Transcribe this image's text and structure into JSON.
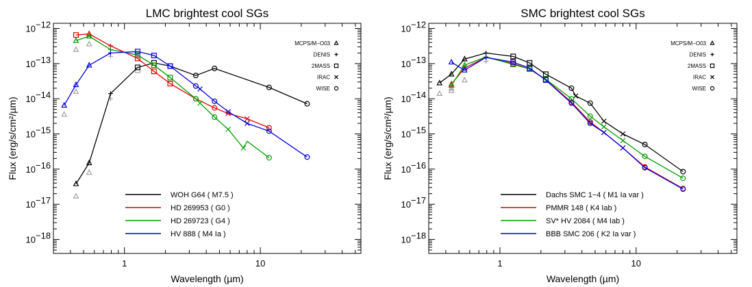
{
  "chart_data": [
    {
      "type": "line",
      "title": "LMC brightest cool SGs",
      "xlabel": "Wavelength (µm)",
      "ylabel": "Flux (erg/s/cm²/µm)",
      "xscale": "log",
      "yscale": "log",
      "xlim": [
        0.3,
        55
      ],
      "ylim": [
        4e-19,
        1.4e-12
      ],
      "x_ticks": [
        {
          "v": 1,
          "label": "1"
        },
        {
          "v": 10,
          "label": "10"
        }
      ],
      "y_ticks": [
        {
          "v": 1e-18,
          "base": "10",
          "exp": "−18"
        },
        {
          "v": 1e-17,
          "base": "10",
          "exp": "−17"
        },
        {
          "v": 1e-16,
          "base": "10",
          "exp": "−16"
        },
        {
          "v": 1e-15,
          "base": "10",
          "exp": "−15"
        },
        {
          "v": 1e-14,
          "base": "10",
          "exp": "−14"
        },
        {
          "v": 1e-13,
          "base": "10",
          "exp": "−13"
        },
        {
          "v": 1e-12,
          "base": "10",
          "exp": "−12"
        }
      ],
      "instrument_legend": {
        "placement": "top-right",
        "items": [
          {
            "label": "MCPS/M−O03",
            "marker": "triangle"
          },
          {
            "label": "DENIS",
            "marker": "plus"
          },
          {
            "label": "2MASS",
            "marker": "square"
          },
          {
            "label": "IRAC",
            "marker": "cross"
          },
          {
            "label": "WISE",
            "marker": "circle"
          }
        ]
      },
      "legend_placement": "bottom-center",
      "series": [
        {
          "name": "WOH G64 ( M7.5 )",
          "color": "#000000",
          "x": [
            0.44,
            0.55,
            0.79,
            1.25,
            1.65,
            2.17,
            3.35,
            4.6,
            11.6,
            22.1
          ],
          "y": [
            3.8e-17,
            1.5e-16,
            1.4e-14,
            7.8e-14,
            1.05e-13,
            8.5e-14,
            4.6e-14,
            7.3e-14,
            2.1e-14,
            7.2e-15
          ],
          "markers": [
            "triangle",
            "triangle",
            "plus",
            "square",
            "square",
            "square",
            "circle",
            "circle",
            "circle",
            "circle"
          ]
        },
        {
          "name": "HD 269953 ( G0 )",
          "color": "#e00000",
          "x": [
            0.44,
            0.55,
            0.79,
            1.25,
            1.65,
            2.17,
            3.35,
            4.6,
            5.8,
            8.0,
            11.6
          ],
          "y": [
            6.5e-13,
            7e-13,
            3.2e-13,
            1.4e-13,
            6e-14,
            2.7e-14,
            1e-14,
            5.5e-15,
            3.8e-15,
            2.7e-15,
            1.5e-15
          ],
          "markers": [
            "square",
            "triangle",
            "plus",
            "square",
            "square",
            "square",
            "circle",
            "circle",
            "cross",
            "cross",
            "circle"
          ]
        },
        {
          "name": "HD 269723 ( G4 )",
          "color": "#009a00",
          "x": [
            0.44,
            0.55,
            0.79,
            1.25,
            1.65,
            2.17,
            3.35,
            3.6,
            4.6,
            5.8,
            7.5,
            8.0,
            11.6
          ],
          "y": [
            4.5e-13,
            6e-13,
            2.5e-13,
            1.75e-13,
            9e-14,
            4e-14,
            1e-14,
            7.5e-15,
            3e-15,
            1.35e-15,
            4e-16,
            6.2e-16,
            2.1e-16
          ],
          "markers": [
            "triangle",
            "triangle",
            "plus",
            "square",
            "square",
            "square",
            "circle",
            "cross",
            "circle",
            "cross",
            "cross",
            "none",
            "circle"
          ]
        },
        {
          "name": "HV 888 ( M4 Ia )",
          "color": "#0000dd",
          "x": [
            0.36,
            0.44,
            0.55,
            0.79,
            1.25,
            1.65,
            2.17,
            3.35,
            3.6,
            4.6,
            5.8,
            8.0,
            11.6,
            22.1
          ],
          "y": [
            6.5e-15,
            2.5e-14,
            9e-14,
            2e-13,
            2.2e-13,
            1.7e-13,
            8.5e-14,
            2.3e-14,
            1.9e-14,
            8.5e-15,
            4.3e-15,
            2e-15,
            1.2e-15,
            2.2e-16
          ],
          "markers": [
            "triangle",
            "triangle",
            "triangle",
            "plus",
            "square",
            "square",
            "square",
            "circle",
            "cross",
            "circle",
            "cross",
            "cross",
            "circle",
            "circle"
          ]
        }
      ],
      "grey_points": {
        "color": "#a0a0a0",
        "x": [
          0.36,
          0.44,
          0.44,
          0.44,
          0.55,
          0.55,
          0.79,
          0.79,
          1.25
        ],
        "y": [
          3.6e-15,
          1.7e-17,
          1.6e-14,
          2.5e-13,
          8e-17,
          3.6e-13,
          1.6e-13,
          1e-14,
          6.5e-14
        ],
        "markers": [
          "triangle",
          "triangle",
          "triangle",
          "triangle",
          "triangle",
          "triangle",
          "plus",
          "plus",
          "square"
        ]
      }
    },
    {
      "type": "line",
      "title": "SMC brightest cool SGs",
      "xlabel": "Wavelength (µm)",
      "ylabel": "Flux (erg/s/cm²/µm)",
      "xscale": "log",
      "yscale": "log",
      "xlim": [
        0.3,
        55
      ],
      "ylim": [
        4e-19,
        1.4e-12
      ],
      "x_ticks": [
        {
          "v": 1,
          "label": "1"
        },
        {
          "v": 10,
          "label": "10"
        }
      ],
      "y_ticks": [
        {
          "v": 1e-18,
          "base": "10",
          "exp": "−18"
        },
        {
          "v": 1e-17,
          "base": "10",
          "exp": "−17"
        },
        {
          "v": 1e-16,
          "base": "10",
          "exp": "−16"
        },
        {
          "v": 1e-15,
          "base": "10",
          "exp": "−15"
        },
        {
          "v": 1e-14,
          "base": "10",
          "exp": "−14"
        },
        {
          "v": 1e-13,
          "base": "10",
          "exp": "−13"
        },
        {
          "v": 1e-12,
          "base": "10",
          "exp": "−12"
        }
      ],
      "instrument_legend": {
        "placement": "top-right",
        "items": [
          {
            "label": "MCPS/M−O03",
            "marker": "triangle"
          },
          {
            "label": "DENIS",
            "marker": "plus"
          },
          {
            "label": "2MASS",
            "marker": "square"
          },
          {
            "label": "IRAC",
            "marker": "cross"
          },
          {
            "label": "WISE",
            "marker": "circle"
          }
        ]
      },
      "legend_placement": "bottom-center",
      "series": [
        {
          "name": "Dachs SMC 1−4 ( M1 Ia var )",
          "color": "#000000",
          "x": [
            0.36,
            0.44,
            0.55,
            0.79,
            1.25,
            1.65,
            2.17,
            3.35,
            3.6,
            4.6,
            5.8,
            8.0,
            11.6,
            22.1
          ],
          "y": [
            2.8e-14,
            5e-14,
            1.35e-13,
            2e-13,
            1.6e-13,
            1.05e-13,
            5e-14,
            2e-14,
            1.2e-14,
            7.5e-15,
            2.3e-15,
            1e-15,
            5e-16,
            8.5e-17
          ],
          "markers": [
            "triangle",
            "triangle",
            "triangle",
            "plus",
            "square",
            "square",
            "square",
            "circle",
            "cross",
            "circle",
            "cross",
            "cross",
            "circle",
            "circle"
          ]
        },
        {
          "name": "PMMR 148 ( K4 Iab )",
          "color": "#e00000",
          "x": [
            0.44,
            0.55,
            0.79,
            1.25,
            1.65,
            2.17,
            3.35,
            4.6,
            5.8,
            8.0,
            11.6,
            22.1
          ],
          "y": [
            2.6e-14,
            7.5e-14,
            1.5e-13,
            1e-13,
            7e-14,
            3.5e-14,
            8e-15,
            2.2e-15,
            1.1e-15,
            4e-16,
            1.15e-16,
            2.8e-17
          ],
          "markers": [
            "triangle",
            "triangle",
            "plus",
            "square",
            "square",
            "square",
            "circle",
            "circle",
            "cross",
            "cross",
            "circle",
            "circle"
          ]
        },
        {
          "name": "SV* HV 2084 ( M4 Iab )",
          "color": "#009a00",
          "x": [
            0.44,
            0.55,
            0.79,
            1.25,
            1.65,
            2.17,
            3.35,
            4.6,
            5.8,
            8.0,
            11.6,
            22.1
          ],
          "y": [
            2.4e-14,
            9e-14,
            1.55e-13,
            9.5e-14,
            7e-14,
            3.6e-14,
            1e-14,
            3.2e-15,
            1.6e-15,
            6.5e-16,
            2.3e-16,
            5.5e-17
          ],
          "markers": [
            "triangle",
            "triangle",
            "plus",
            "square",
            "square",
            "square",
            "circle",
            "circle",
            "cross",
            "cross",
            "circle",
            "circle"
          ]
        },
        {
          "name": "BBB SMC 206 ( K2 Ia var )",
          "color": "#0000dd",
          "x": [
            0.44,
            0.55,
            0.79,
            1.25,
            1.65,
            2.17,
            3.35,
            4.6,
            5.8,
            8.0,
            11.6,
            22.1
          ],
          "y": [
            1.1e-13,
            6.5e-14,
            1.5e-13,
            1.1e-13,
            7.5e-14,
            3.4e-14,
            7.5e-15,
            2e-15,
            1.1e-15,
            4e-16,
            1.1e-16,
            2.7e-17
          ],
          "markers": [
            "triangle",
            "triangle",
            "plus",
            "square",
            "square",
            "square",
            "circle",
            "circle",
            "cross",
            "cross",
            "circle",
            "circle"
          ]
        }
      ],
      "grey_points": {
        "color": "#a0a0a0",
        "x": [
          0.36,
          0.44,
          0.44,
          0.55,
          0.79
        ],
        "y": [
          1.4e-14,
          1.7e-14,
          2e-14,
          3.4e-14,
          1.15e-13
        ],
        "markers": [
          "triangle",
          "triangle",
          "triangle",
          "triangle",
          "plus"
        ]
      }
    }
  ]
}
